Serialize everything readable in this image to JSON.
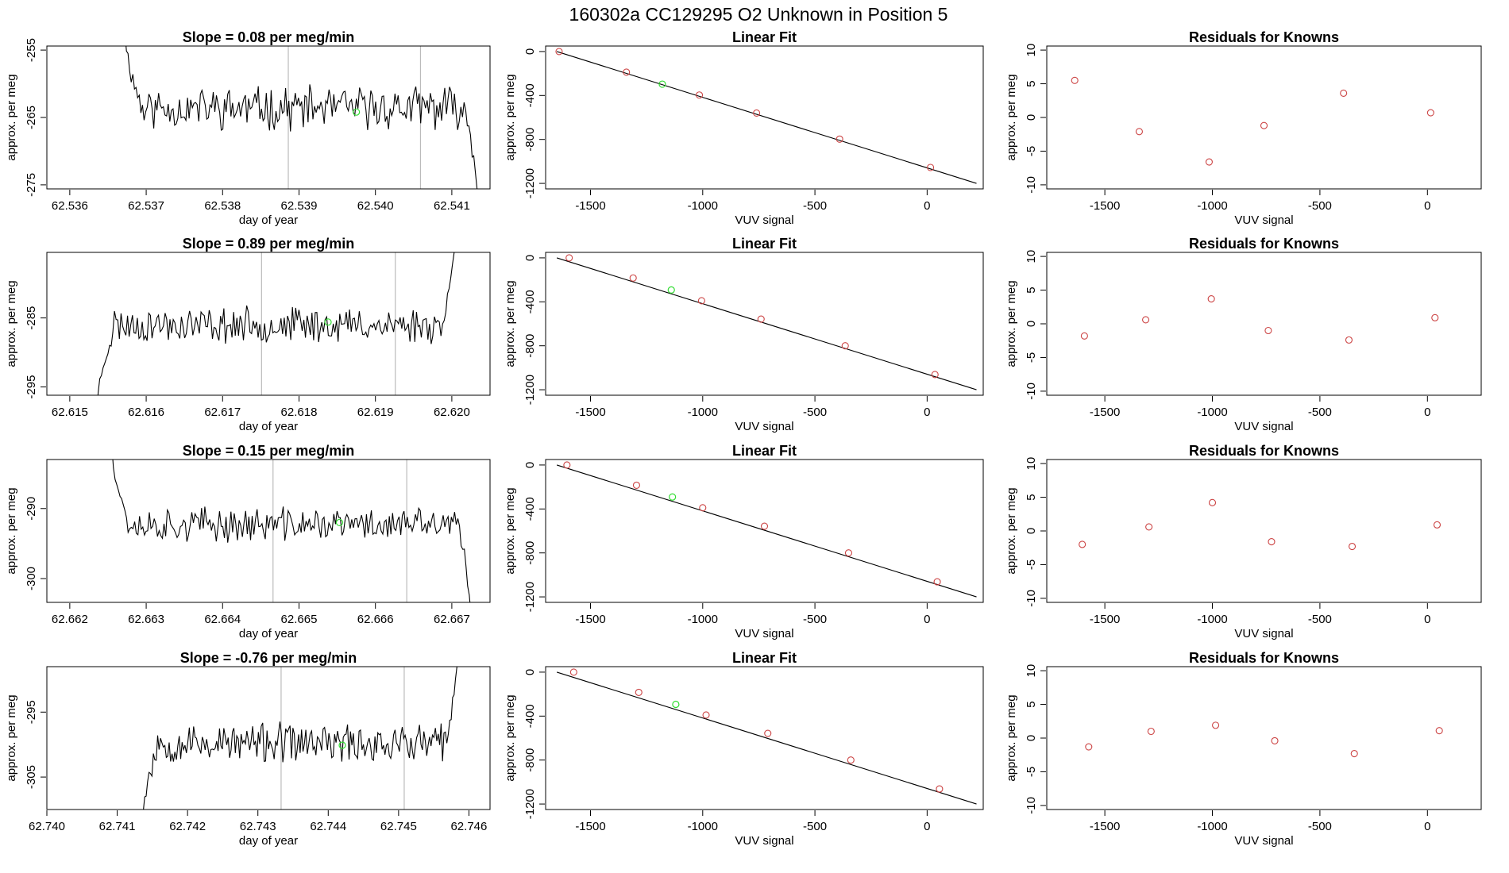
{
  "figure_title": "160302a      CC129295   O2 Unknown in Position  5",
  "colors": {
    "axis": "#000000",
    "line": "#000000",
    "vline": "#bbbbbb",
    "known_point": "#cc4444",
    "unknown_point": "#33dd33"
  },
  "chart_data": [
    {
      "type": "line",
      "title": "Slope =  0.08  per meg/min",
      "xlabel": "day of year",
      "ylabel": "approx. per meg",
      "xlim": [
        62.5357,
        62.5415
      ],
      "ylim": [
        -275.6,
        -254.4
      ],
      "xticks": [
        62.536,
        62.537,
        62.538,
        62.539,
        62.54,
        62.541
      ],
      "xtick_labels": [
        "62.536",
        "62.537",
        "62.538",
        "62.539",
        "62.540",
        "62.541"
      ],
      "yticks": [
        -255,
        -265,
        -275
      ],
      "ytick_labels": [
        "-255",
        "-265",
        "-275"
      ],
      "vlines": [
        62.53886,
        62.54059
      ],
      "series": [
        {
          "x_start": 62.53672,
          "x_end": 62.54135,
          "y_start": -252,
          "y_end": -278,
          "mean": -263.6,
          "noise": 2.6,
          "seed": 11
        }
      ],
      "unknown_point": {
        "x": 62.53975,
        "y": -264.2
      }
    },
    {
      "type": "scatter",
      "title": "Linear Fit",
      "xlabel": "VUV signal",
      "ylabel": "approx. per meg",
      "xlim": [
        -1700,
        250
      ],
      "ylim": [
        -1250,
        50
      ],
      "xticks": [
        -1500,
        -1000,
        -500,
        0
      ],
      "xtick_labels": [
        "-1500",
        "-1000",
        "-500",
        "0"
      ],
      "yticks": [
        0,
        -400,
        -800,
        -1200
      ],
      "ytick_labels": [
        "0",
        "-400",
        "-800",
        "-1200"
      ],
      "fit_line": {
        "x": [
          -1650,
          220
        ],
        "y": [
          0,
          -1200
        ]
      },
      "knowns": {
        "x": [
          -1640,
          -1340,
          -1015,
          -760,
          -390,
          15
        ],
        "y": [
          0,
          -188,
          -396,
          -560,
          -797,
          -1055
        ]
      },
      "unknown_point": {
        "x": -1180,
        "y": -297
      }
    },
    {
      "type": "scatter",
      "title": "Residuals for Knowns",
      "xlabel": "VUV signal",
      "ylabel": "approx. per meg",
      "xlim": [
        -1770,
        250
      ],
      "ylim": [
        -10.6,
        10.6
      ],
      "xticks": [
        -1500,
        -1000,
        -500,
        0
      ],
      "xtick_labels": [
        "-1500",
        "-1000",
        "-500",
        "0"
      ],
      "yticks": [
        10,
        5,
        0,
        -5,
        -10
      ],
      "ytick_labels": [
        "10",
        "5",
        "0",
        "-5",
        "-10"
      ],
      "knowns": {
        "x": [
          -1640,
          -1340,
          -1015,
          -760,
          -390,
          15
        ],
        "y": [
          5.5,
          -2.1,
          -6.6,
          -1.2,
          3.6,
          0.7
        ]
      }
    },
    {
      "type": "line",
      "title": "Slope =  0.89  per meg/min",
      "xlabel": "day of year",
      "ylabel": "approx. per meg",
      "xlim": [
        62.6147,
        62.6205
      ],
      "ylim": [
        -296.2,
        -275.5
      ],
      "xticks": [
        62.615,
        62.616,
        62.617,
        62.618,
        62.619,
        62.62
      ],
      "xtick_labels": [
        "62.615",
        "62.616",
        "62.617",
        "62.618",
        "62.619",
        "62.620"
      ],
      "yticks": [
        -285,
        -295
      ],
      "ytick_labels": [
        "-285",
        "-295"
      ],
      "vlines": [
        62.61751,
        62.61926
      ],
      "series": [
        {
          "x_start": 62.61535,
          "x_end": 62.62005,
          "y_start": -299,
          "y_end": -273,
          "mean": -286.0,
          "noise": 2.1,
          "seed": 23
        }
      ],
      "unknown_point": {
        "x": 62.61838,
        "y": -285.6
      }
    },
    {
      "type": "scatter",
      "title": "Linear Fit",
      "xlabel": "VUV signal",
      "ylabel": "approx. per meg",
      "xlim": [
        -1700,
        250
      ],
      "ylim": [
        -1250,
        50
      ],
      "xticks": [
        -1500,
        -1000,
        -500,
        0
      ],
      "xtick_labels": [
        "-1500",
        "-1000",
        "-500",
        "0"
      ],
      "yticks": [
        0,
        -400,
        -800,
        -1200
      ],
      "ytick_labels": [
        "0",
        "-400",
        "-800",
        "-1200"
      ],
      "fit_line": {
        "x": [
          -1650,
          220
        ],
        "y": [
          0,
          -1200
        ]
      },
      "knowns": {
        "x": [
          -1595,
          -1310,
          -1005,
          -740,
          -365,
          35
        ],
        "y": [
          0,
          -183,
          -390,
          -557,
          -800,
          -1062
        ]
      },
      "unknown_point": {
        "x": -1140,
        "y": -292
      }
    },
    {
      "type": "scatter",
      "title": "Residuals for Knowns",
      "xlabel": "VUV signal",
      "ylabel": "approx. per meg",
      "xlim": [
        -1770,
        250
      ],
      "ylim": [
        -10.6,
        10.6
      ],
      "xticks": [
        -1500,
        -1000,
        -500,
        0
      ],
      "xtick_labels": [
        "-1500",
        "-1000",
        "-500",
        "0"
      ],
      "yticks": [
        10,
        5,
        0,
        -5,
        -10
      ],
      "ytick_labels": [
        "10",
        "5",
        "0",
        "-5",
        "-10"
      ],
      "knowns": {
        "x": [
          -1595,
          -1310,
          -1005,
          -740,
          -365,
          35
        ],
        "y": [
          -1.8,
          0.6,
          3.7,
          -1.0,
          -2.4,
          0.9
        ]
      }
    },
    {
      "type": "line",
      "title": "Slope =  0.15  per meg/min",
      "xlabel": "day of year",
      "ylabel": "approx. per meg",
      "xlim": [
        62.6617,
        62.6675
      ],
      "ylim": [
        -303.4,
        -283.0
      ],
      "xticks": [
        62.662,
        62.663,
        62.664,
        62.665,
        62.666,
        62.667
      ],
      "xtick_labels": [
        "62.662",
        "62.663",
        "62.664",
        "62.665",
        "62.666",
        "62.667"
      ],
      "yticks": [
        -290,
        -300
      ],
      "ytick_labels": [
        "-290",
        "-300"
      ],
      "vlines": [
        62.66466,
        62.66641
      ],
      "series": [
        {
          "x_start": 62.66255,
          "x_end": 62.66725,
          "y_start": -281,
          "y_end": -305,
          "mean": -292.3,
          "noise": 2.0,
          "seed": 37
        }
      ],
      "unknown_point": {
        "x": 62.66553,
        "y": -292.0
      }
    },
    {
      "type": "scatter",
      "title": "Linear Fit",
      "xlabel": "VUV signal",
      "ylabel": "approx. per meg",
      "xlim": [
        -1700,
        250
      ],
      "ylim": [
        -1250,
        50
      ],
      "xticks": [
        -1500,
        -1000,
        -500,
        0
      ],
      "xtick_labels": [
        "-1500",
        "-1000",
        "-500",
        "0"
      ],
      "yticks": [
        0,
        -400,
        -800,
        -1200
      ],
      "ytick_labels": [
        "0",
        "-400",
        "-800",
        "-1200"
      ],
      "fit_line": {
        "x": [
          -1650,
          220
        ],
        "y": [
          0,
          -1200
        ]
      },
      "knowns": {
        "x": [
          -1605,
          -1295,
          -1000,
          -725,
          -350,
          45
        ],
        "y": [
          0,
          -184,
          -389,
          -557,
          -800,
          -1063
        ]
      },
      "unknown_point": {
        "x": -1135,
        "y": -291
      }
    },
    {
      "type": "scatter",
      "title": "Residuals for Knowns",
      "xlabel": "VUV signal",
      "ylabel": "approx. per meg",
      "xlim": [
        -1770,
        250
      ],
      "ylim": [
        -10.6,
        10.6
      ],
      "xticks": [
        -1500,
        -1000,
        -500,
        0
      ],
      "xtick_labels": [
        "-1500",
        "-1000",
        "-500",
        "0"
      ],
      "yticks": [
        10,
        5,
        0,
        -5,
        -10
      ],
      "ytick_labels": [
        "10",
        "5",
        "0",
        "-5",
        "-10"
      ],
      "knowns": {
        "x": [
          -1605,
          -1295,
          -1000,
          -725,
          -350,
          45
        ],
        "y": [
          -2.0,
          0.6,
          4.2,
          -1.6,
          -2.3,
          0.9
        ]
      }
    },
    {
      "type": "line",
      "title": "Slope =  -0.76  per meg/min",
      "xlabel": "day of year",
      "ylabel": "approx. per meg",
      "xlim": [
        62.74,
        62.7463
      ],
      "ylim": [
        -310.0,
        -288.0
      ],
      "xticks": [
        62.74,
        62.741,
        62.742,
        62.743,
        62.744,
        62.745,
        62.746
      ],
      "xtick_labels": [
        "62.740",
        "62.741",
        "62.742",
        "62.743",
        "62.744",
        "62.745",
        "62.746"
      ],
      "yticks": [
        -295,
        -305
      ],
      "ytick_labels": [
        "-295",
        "-305"
      ],
      "vlines": [
        62.74333,
        62.74508
      ],
      "series": [
        {
          "x_start": 62.74135,
          "x_end": 62.74585,
          "y_start": -313,
          "y_end": -285,
          "mean": -299.8,
          "noise": 2.5,
          "seed": 53
        }
      ],
      "unknown_point": {
        "x": 62.7442,
        "y": -300.1
      }
    },
    {
      "type": "scatter",
      "title": "Linear Fit",
      "xlabel": "VUV signal",
      "ylabel": "approx. per meg",
      "xlim": [
        -1700,
        250
      ],
      "ylim": [
        -1250,
        50
      ],
      "xticks": [
        -1500,
        -1000,
        -500,
        0
      ],
      "xtick_labels": [
        "-1500",
        "-1000",
        "-500",
        "0"
      ],
      "yticks": [
        0,
        -400,
        -800,
        -1200
      ],
      "ytick_labels": [
        "0",
        "-400",
        "-800",
        "-1200"
      ],
      "fit_line": {
        "x": [
          -1650,
          220
        ],
        "y": [
          0,
          -1200
        ]
      },
      "knowns": {
        "x": [
          -1575,
          -1285,
          -985,
          -710,
          -340,
          55
        ],
        "y": [
          0,
          -184,
          -390,
          -557,
          -800,
          -1063
        ]
      },
      "unknown_point": {
        "x": -1120,
        "y": -293
      }
    },
    {
      "type": "scatter",
      "title": "Residuals for Knowns",
      "xlabel": "VUV signal",
      "ylabel": "approx. per meg",
      "xlim": [
        -1770,
        250
      ],
      "ylim": [
        -10.6,
        10.6
      ],
      "xticks": [
        -1500,
        -1000,
        -500,
        0
      ],
      "xtick_labels": [
        "-1500",
        "-1000",
        "-500",
        "0"
      ],
      "yticks": [
        10,
        5,
        0,
        -5,
        -10
      ],
      "ytick_labels": [
        "10",
        "5",
        "0",
        "-5",
        "-10"
      ],
      "knowns": {
        "x": [
          -1575,
          -1285,
          -985,
          -710,
          -340,
          55
        ],
        "y": [
          -1.3,
          1.0,
          1.9,
          -0.4,
          -2.3,
          1.1
        ]
      }
    }
  ]
}
